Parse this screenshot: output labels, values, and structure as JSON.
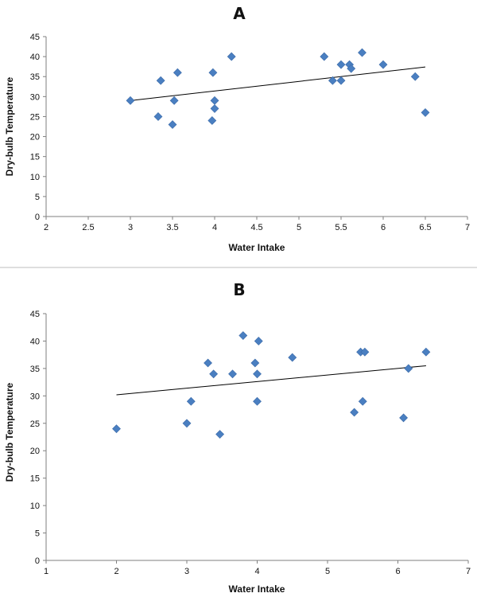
{
  "chart_data": [
    {
      "type": "scatter",
      "title": "A",
      "xlabel": "Water Intake",
      "ylabel": "Dry-bulb Temperature",
      "xlim": [
        2,
        7
      ],
      "ylim": [
        0,
        45
      ],
      "xticks": [
        "2",
        "2.5",
        "3",
        "3.5",
        "4",
        "4.5",
        "5",
        "5.5",
        "6",
        "6.5",
        "7"
      ],
      "yticks": [
        "0",
        "5",
        "10",
        "15",
        "20",
        "25",
        "30",
        "35",
        "40",
        "45"
      ],
      "x": [
        3.0,
        3.33,
        3.36,
        3.5,
        3.52,
        3.56,
        3.97,
        3.98,
        4.0,
        4.0,
        4.2,
        5.3,
        5.4,
        5.5,
        5.5,
        5.6,
        5.62,
        5.75,
        6.0,
        6.38,
        6.5
      ],
      "y": [
        29,
        25,
        34,
        23,
        29,
        36,
        24,
        36,
        27,
        29,
        40,
        40,
        34,
        38,
        34,
        38,
        37,
        41,
        38,
        35,
        26
      ],
      "trendline": {
        "x": [
          3.0,
          6.5
        ],
        "y": [
          29.0,
          37.4
        ]
      },
      "grid": false,
      "legend": "none"
    },
    {
      "type": "scatter",
      "title": "B",
      "xlabel": "Water Intake",
      "ylabel": "Dry-bulb Temperature",
      "xlim": [
        1,
        7
      ],
      "ylim": [
        0,
        45
      ],
      "xticks": [
        "1",
        "2",
        "3",
        "4",
        "5",
        "6",
        "7"
      ],
      "yticks": [
        "0",
        "5",
        "10",
        "15",
        "20",
        "25",
        "30",
        "35",
        "40",
        "45"
      ],
      "x": [
        2.0,
        3.0,
        3.06,
        3.3,
        3.38,
        3.47,
        3.65,
        3.8,
        3.97,
        4.0,
        4.0,
        4.02,
        4.5,
        5.38,
        5.47,
        5.5,
        5.53,
        6.08,
        6.15,
        6.4
      ],
      "y": [
        24,
        25,
        29,
        36,
        34,
        23,
        34,
        41,
        36,
        34,
        29,
        40,
        37,
        27,
        38,
        29,
        38,
        26,
        35,
        38
      ],
      "trendline": {
        "x": [
          2.0,
          6.4
        ],
        "y": [
          30.2,
          35.5
        ]
      },
      "grid": false,
      "legend": "none"
    }
  ],
  "colors": {
    "marker": "#4a7fc1",
    "axis": "#7f7f7f",
    "trendline": "#000000"
  }
}
